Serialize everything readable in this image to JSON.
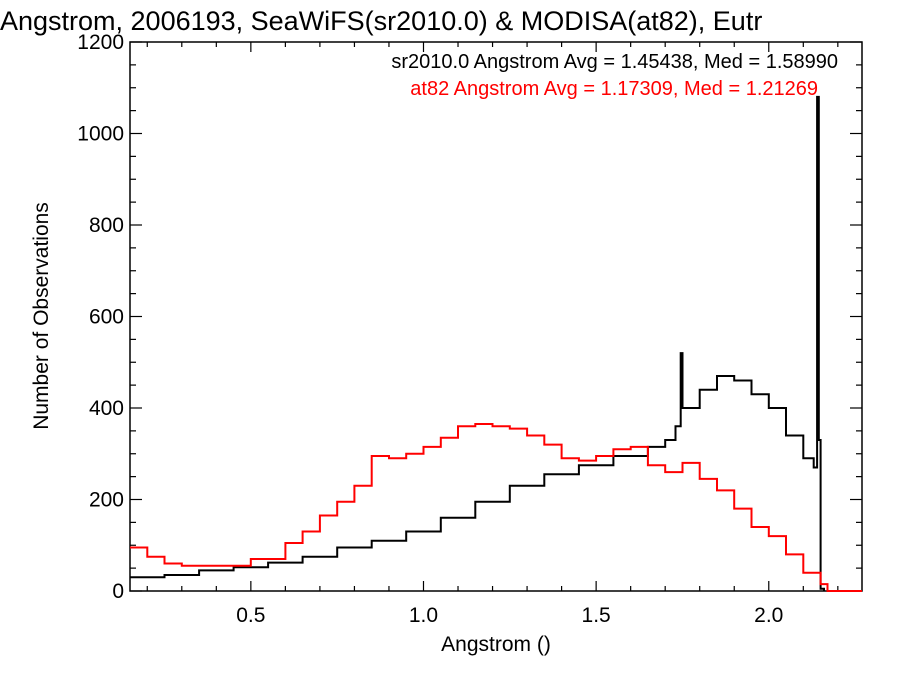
{
  "chart_data": {
    "type": "line",
    "title": "Angstrom, 2006193, SeaWiFS(sr2010.0) & MODISA(at82), Eutr",
    "xlabel": "Angstrom ()",
    "ylabel": "Number of Observations",
    "xlim": [
      0.15,
      2.27
    ],
    "ylim": [
      0,
      1200
    ],
    "x_ticks": [
      "0.5",
      "1.0",
      "1.5",
      "2.0"
    ],
    "y_ticks": [
      "0",
      "200",
      "400",
      "600",
      "800",
      "1000",
      "1200"
    ],
    "step_style": "histogram",
    "grid": false,
    "legend_position": "top-right",
    "legend": [
      {
        "text": "sr2010.0 Angstrom Avg = 1.45438, Med = 1.58990",
        "color": "#000000"
      },
      {
        "text": "at82 Angstrom Avg = 1.17309, Med = 1.21269",
        "color": "#ff0000"
      }
    ],
    "series": [
      {
        "name": "sr2010.0",
        "color": "#000000",
        "points": [
          [
            0.15,
            30
          ],
          [
            0.25,
            35
          ],
          [
            0.35,
            45
          ],
          [
            0.45,
            52
          ],
          [
            0.55,
            62
          ],
          [
            0.65,
            75
          ],
          [
            0.75,
            95
          ],
          [
            0.85,
            110
          ],
          [
            0.95,
            130
          ],
          [
            1.05,
            160
          ],
          [
            1.15,
            195
          ],
          [
            1.25,
            230
          ],
          [
            1.35,
            255
          ],
          [
            1.45,
            275
          ],
          [
            1.55,
            295
          ],
          [
            1.65,
            315
          ],
          [
            1.7,
            330
          ],
          [
            1.73,
            360
          ],
          [
            1.745,
            520
          ],
          [
            1.75,
            400
          ],
          [
            1.8,
            440
          ],
          [
            1.85,
            470
          ],
          [
            1.9,
            460
          ],
          [
            1.95,
            430
          ],
          [
            2.0,
            400
          ],
          [
            2.05,
            340
          ],
          [
            2.1,
            290
          ],
          [
            2.13,
            270
          ],
          [
            2.14,
            1080
          ],
          [
            2.145,
            330
          ],
          [
            2.15,
            5
          ],
          [
            2.16,
            0
          ]
        ]
      },
      {
        "name": "at82",
        "color": "#ff0000",
        "points": [
          [
            0.15,
            95
          ],
          [
            0.2,
            75
          ],
          [
            0.25,
            60
          ],
          [
            0.3,
            55
          ],
          [
            0.4,
            55
          ],
          [
            0.5,
            70
          ],
          [
            0.6,
            105
          ],
          [
            0.65,
            130
          ],
          [
            0.7,
            165
          ],
          [
            0.75,
            195
          ],
          [
            0.8,
            230
          ],
          [
            0.85,
            295
          ],
          [
            0.9,
            290
          ],
          [
            0.95,
            300
          ],
          [
            1.0,
            315
          ],
          [
            1.05,
            335
          ],
          [
            1.1,
            360
          ],
          [
            1.15,
            365
          ],
          [
            1.2,
            360
          ],
          [
            1.25,
            355
          ],
          [
            1.3,
            340
          ],
          [
            1.35,
            320
          ],
          [
            1.4,
            290
          ],
          [
            1.45,
            285
          ],
          [
            1.5,
            295
          ],
          [
            1.55,
            310
          ],
          [
            1.6,
            315
          ],
          [
            1.65,
            275
          ],
          [
            1.7,
            260
          ],
          [
            1.75,
            280
          ],
          [
            1.8,
            245
          ],
          [
            1.85,
            220
          ],
          [
            1.9,
            180
          ],
          [
            1.95,
            140
          ],
          [
            2.0,
            120
          ],
          [
            2.05,
            80
          ],
          [
            2.1,
            40
          ],
          [
            2.15,
            15
          ],
          [
            2.17,
            0
          ],
          [
            2.27,
            0
          ]
        ]
      }
    ]
  }
}
